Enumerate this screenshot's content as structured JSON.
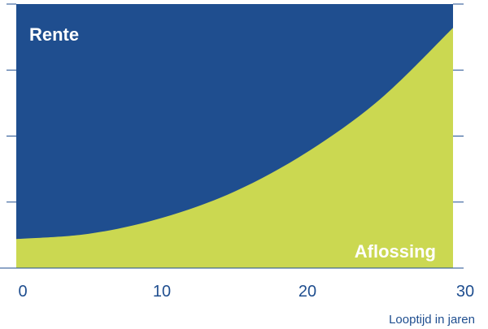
{
  "chart_data": {
    "type": "area",
    "stacked": true,
    "normalized": true,
    "x": [
      0,
      5,
      10,
      15,
      20,
      25,
      30
    ],
    "xlim": [
      0,
      30
    ],
    "xticks": [
      0,
      10,
      20,
      30
    ],
    "ylim": [
      0,
      1
    ],
    "xlabel": "Looptijd in jaren",
    "ylabel": "",
    "grid": false,
    "legend": "none",
    "series": [
      {
        "name": "Aflossing",
        "color": "#cbd851",
        "values": [
          0.11,
          0.13,
          0.19,
          0.29,
          0.44,
          0.64,
          0.91
        ]
      },
      {
        "name": "Rente",
        "color": "#1f4e8f",
        "values": [
          0.89,
          0.87,
          0.81,
          0.71,
          0.56,
          0.36,
          0.09
        ]
      }
    ],
    "axis_color": "#1f4e8f",
    "text_color": "#1f4e8f"
  }
}
